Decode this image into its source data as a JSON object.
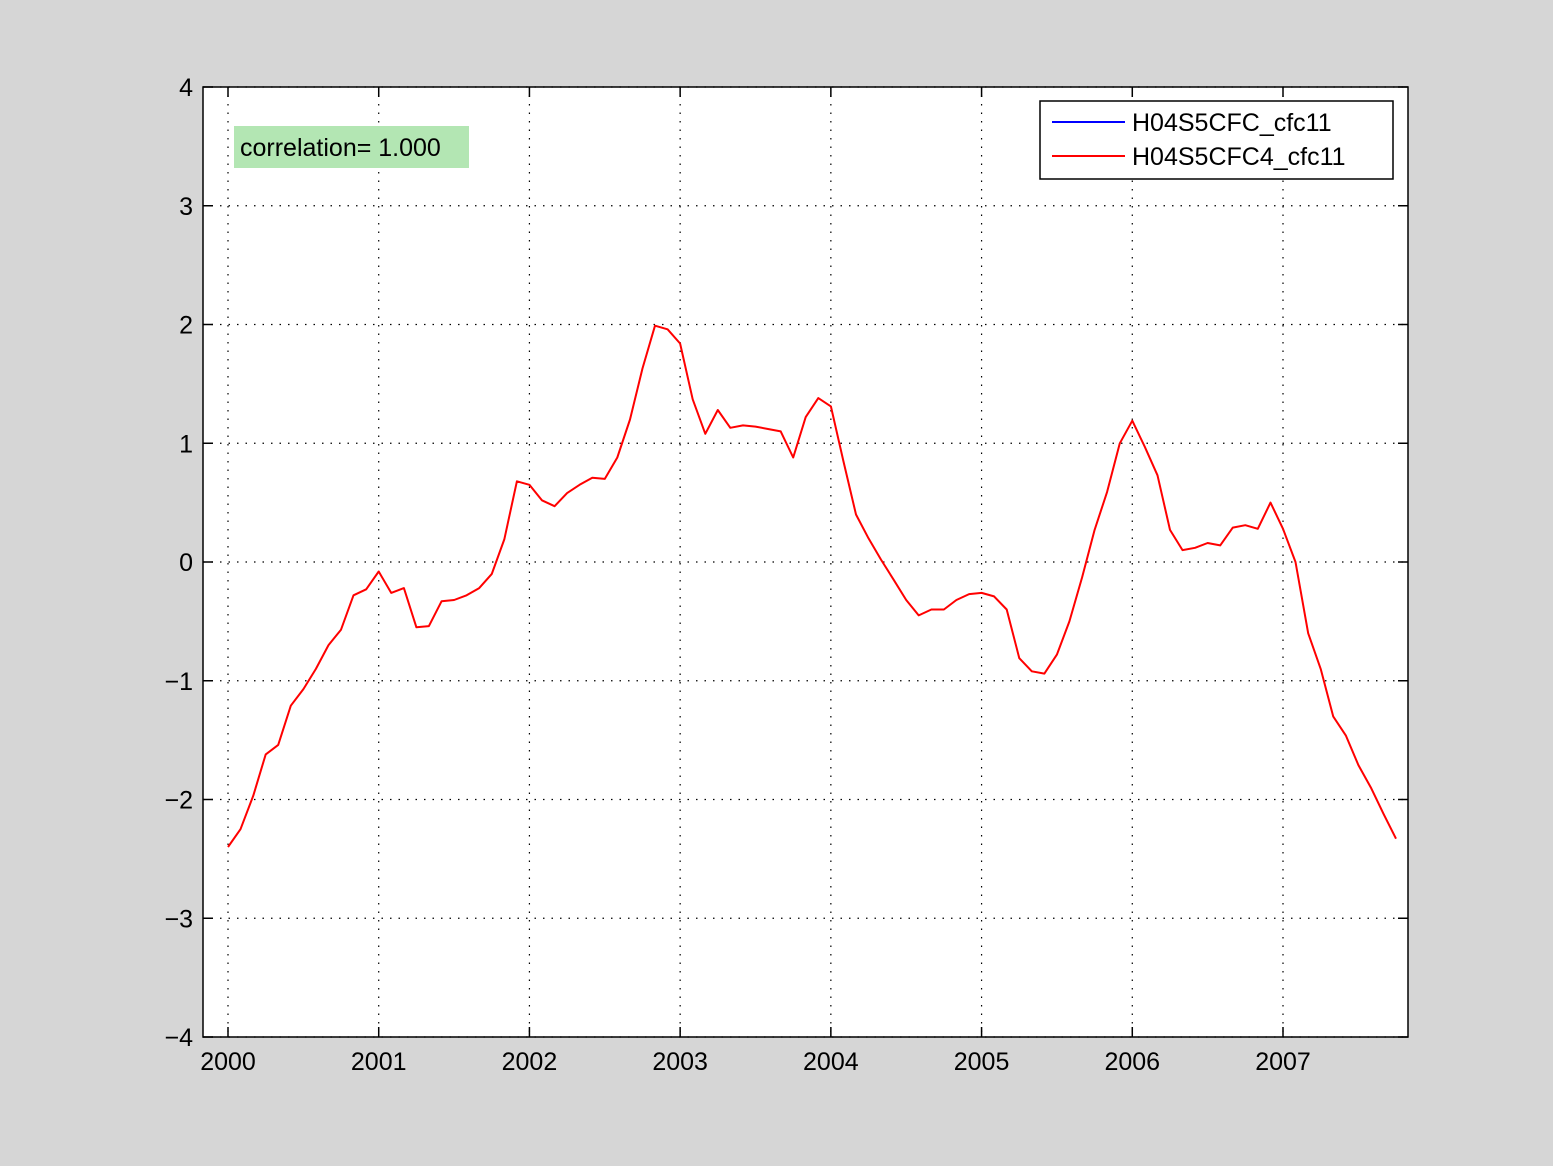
{
  "chart_data": {
    "type": "line",
    "title": "",
    "xlabel": "",
    "ylabel": "",
    "xlim": [
      2000,
      2007.95
    ],
    "ylim": [
      -4,
      4
    ],
    "xticks": [
      2000,
      2001,
      2002,
      2003,
      2004,
      2005,
      2006,
      2007
    ],
    "xtick_labels": [
      "2000",
      "2001",
      "2002",
      "2003",
      "2004",
      "2005",
      "2006",
      "2007"
    ],
    "yticks": [
      -4,
      -3,
      -2,
      -1,
      0,
      1,
      2,
      3,
      4
    ],
    "ytick_labels": [
      "−4",
      "−3",
      "−2",
      "−1",
      "0",
      "1",
      "2",
      "3",
      "4"
    ],
    "grid": true,
    "legend_position": "top-right",
    "annotation": "correlation= 1.000",
    "colors": {
      "background": "#d6d6d6",
      "axes": "#ffffff",
      "annotation_bg": "#b3e6b3"
    },
    "series": [
      {
        "name": "H04S5CFC_cfc11",
        "color": "#0000ff",
        "x": [],
        "y": []
      },
      {
        "name": "H04S5CFC4_cfc11",
        "color": "#ff0000",
        "x": [
          2000.0,
          2000.083,
          2000.167,
          2000.25,
          2000.333,
          2000.417,
          2000.5,
          2000.583,
          2000.667,
          2000.75,
          2000.833,
          2000.917,
          2001.0,
          2001.083,
          2001.167,
          2001.25,
          2001.333,
          2001.417,
          2001.5,
          2001.583,
          2001.667,
          2001.75,
          2001.833,
          2001.917,
          2002.0,
          2002.083,
          2002.167,
          2002.25,
          2002.333,
          2002.417,
          2002.5,
          2002.583,
          2002.667,
          2002.75,
          2002.833,
          2002.917,
          2003.0,
          2003.083,
          2003.167,
          2003.25,
          2003.333,
          2003.417,
          2003.5,
          2003.583,
          2003.667,
          2003.75,
          2003.833,
          2003.917,
          2004.0,
          2004.083,
          2004.167,
          2004.25,
          2004.333,
          2004.417,
          2004.5,
          2004.583,
          2004.667,
          2004.75,
          2004.833,
          2004.917,
          2005.0,
          2005.083,
          2005.167,
          2005.25,
          2005.333,
          2005.417,
          2005.5,
          2005.583,
          2005.667,
          2005.75,
          2005.833,
          2005.917,
          2006.0,
          2006.083,
          2006.167,
          2006.25,
          2006.333,
          2006.417,
          2006.5,
          2006.583,
          2006.667,
          2006.75,
          2006.833,
          2006.917,
          2007.0,
          2007.083,
          2007.167,
          2007.25,
          2007.333,
          2007.417,
          2007.5,
          2007.583,
          2007.667,
          2007.75
        ],
        "y": [
          -2.4,
          -2.25,
          -1.97,
          -1.62,
          -1.54,
          -1.21,
          -1.07,
          -0.9,
          -0.7,
          -0.57,
          -0.28,
          -0.23,
          -0.08,
          -0.26,
          -0.22,
          -0.55,
          -0.54,
          -0.33,
          -0.32,
          -0.28,
          -0.22,
          -0.1,
          0.19,
          0.68,
          0.65,
          0.52,
          0.47,
          0.58,
          0.65,
          0.71,
          0.7,
          0.88,
          1.2,
          1.63,
          1.99,
          1.96,
          1.84,
          1.37,
          1.08,
          1.28,
          1.13,
          1.15,
          1.14,
          1.12,
          1.1,
          0.88,
          1.22,
          1.38,
          1.31,
          0.85,
          0.4,
          0.2,
          0.02,
          -0.15,
          -0.32,
          -0.45,
          -0.4,
          -0.4,
          -0.32,
          -0.27,
          -0.26,
          -0.29,
          -0.4,
          -0.81,
          -0.92,
          -0.94,
          -0.78,
          -0.5,
          -0.13,
          0.27,
          0.59,
          1.0,
          1.19,
          0.97,
          0.73,
          0.27,
          0.1,
          0.12,
          0.16,
          0.14,
          0.29,
          0.31,
          0.28,
          0.5,
          0.28,
          0.0,
          -0.6,
          -0.9,
          -1.3,
          -1.46,
          -1.71,
          -1.9,
          -2.12,
          -2.33
        ]
      }
    ]
  }
}
